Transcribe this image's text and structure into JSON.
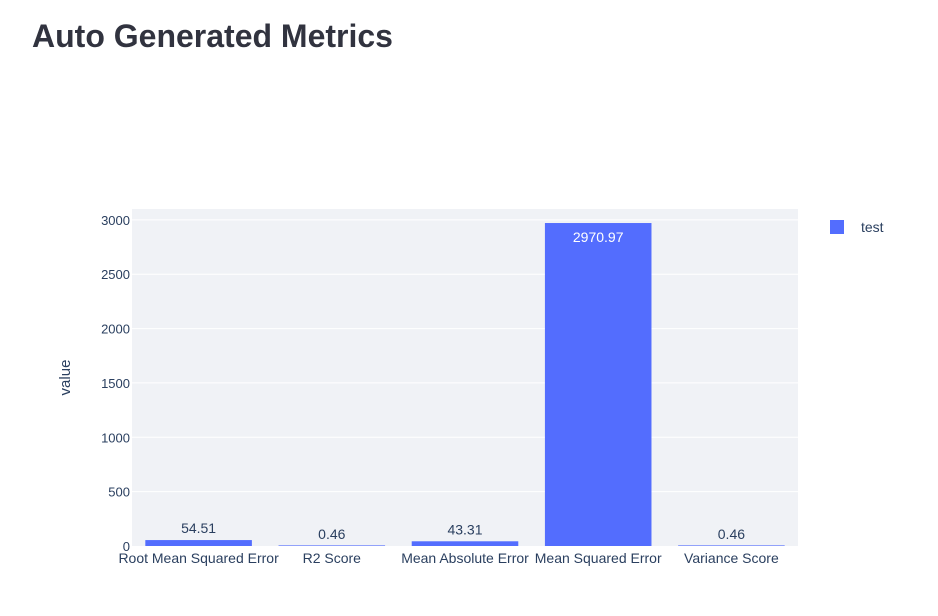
{
  "page": {
    "title": "Auto Generated Metrics"
  },
  "chart_data": {
    "type": "bar",
    "categories": [
      "Root Mean Squared Error",
      "R2 Score",
      "Mean Absolute Error",
      "Mean Squared Error",
      "Variance Score"
    ],
    "series": [
      {
        "name": "test",
        "values": [
          54.51,
          0.46,
          43.31,
          2970.97,
          0.46
        ],
        "labels": [
          "54.51",
          "0.46",
          "43.31",
          "2970.97",
          "0.46"
        ],
        "color": "#536dfe"
      }
    ],
    "title": "",
    "xlabel": "",
    "ylabel": "value",
    "ylim": [
      0,
      3100
    ],
    "yticks": [
      0,
      500,
      1000,
      1500,
      2000,
      2500,
      3000
    ],
    "grid": true,
    "legend_position": "top-right",
    "plot_background": "#f0f2f6",
    "grid_color": "#ffffff"
  }
}
